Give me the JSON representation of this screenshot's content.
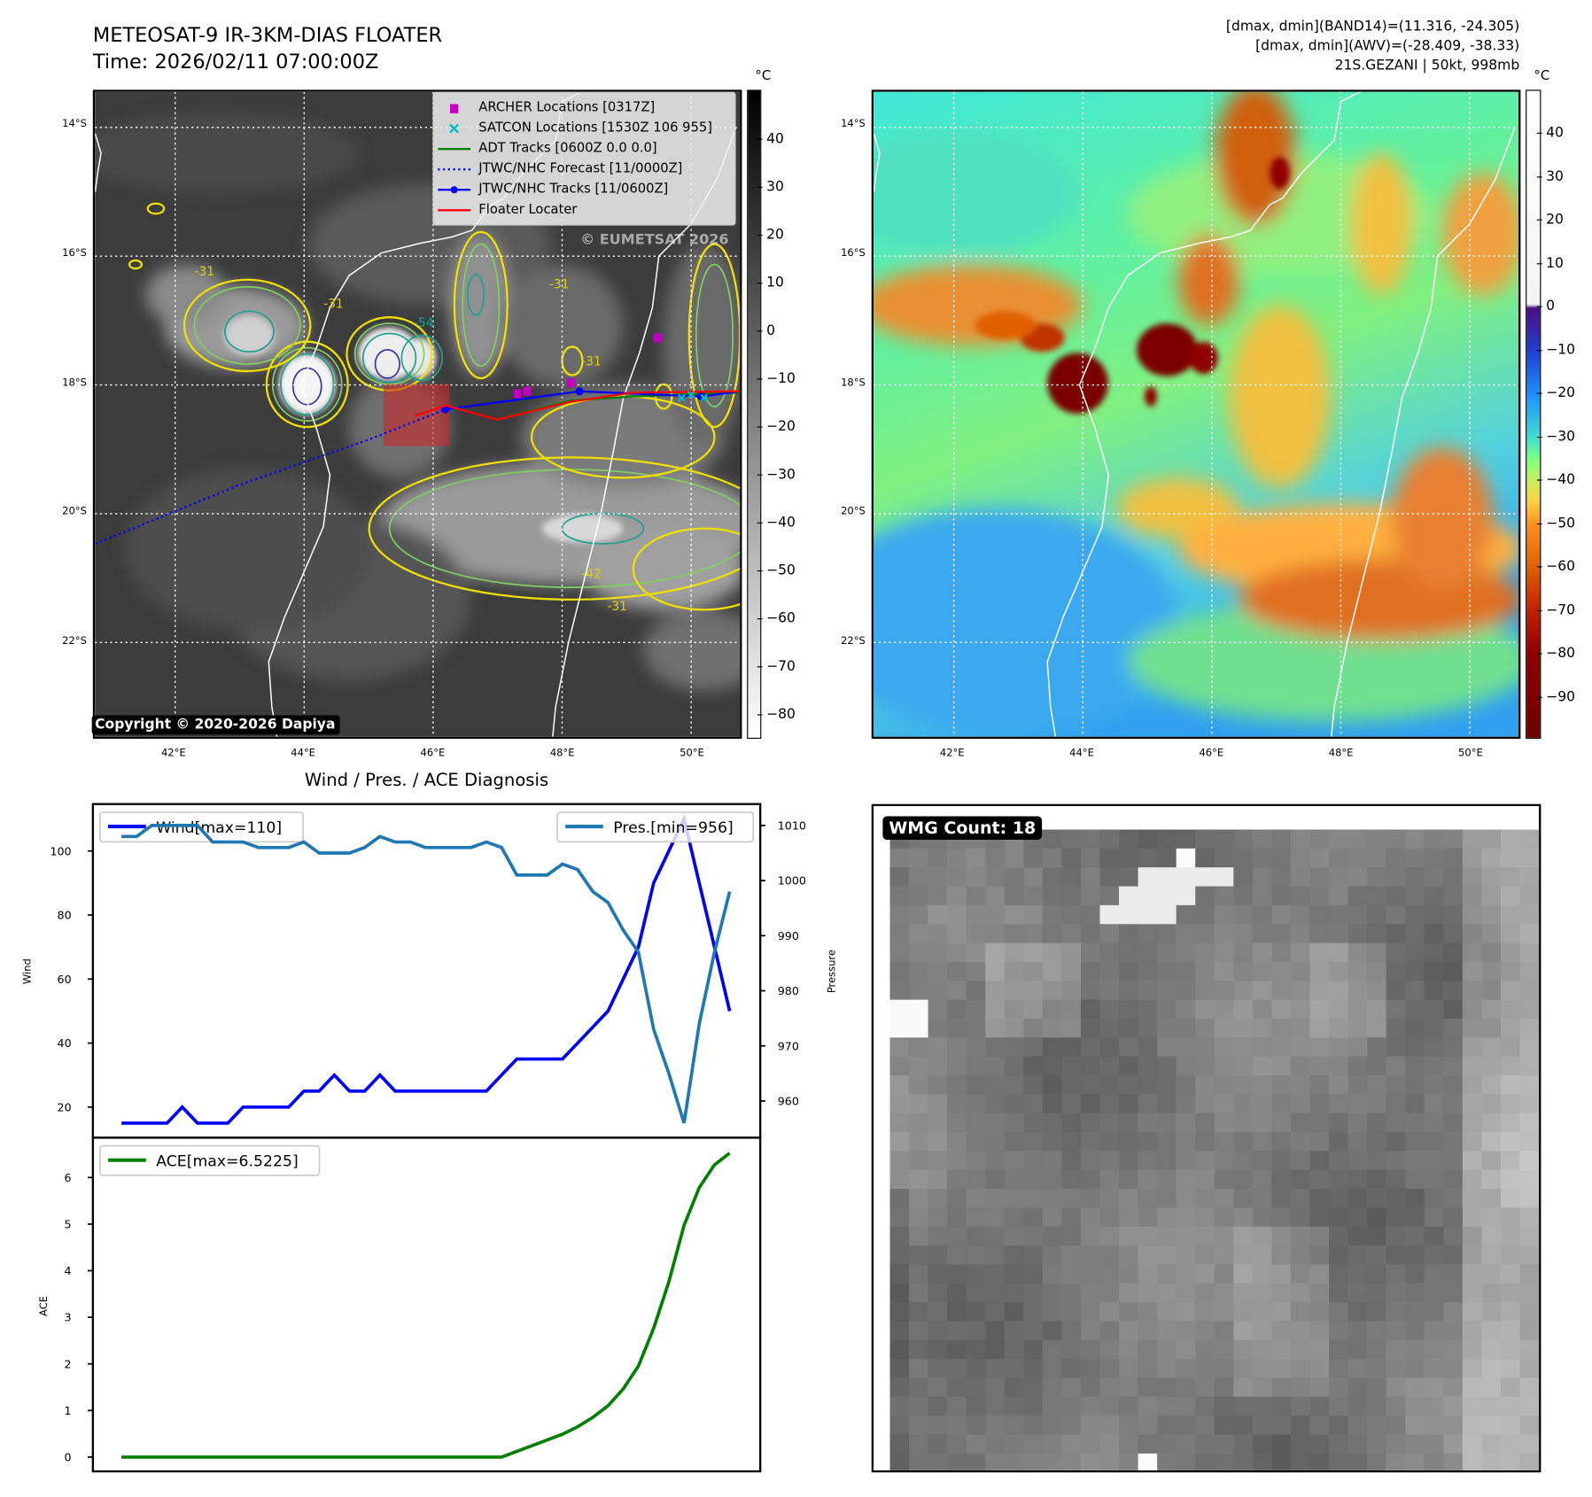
{
  "header": {
    "title_line1": "METEOSAT-9 IR-3KM-DIAS FLOATER",
    "title_line2": "Time: 2026/02/11 07:00:00Z",
    "stats_line1": "[dmax, dmin](BAND14)=(11.316, -24.305)",
    "stats_line2": "[dmax, dmin](AWV)=(-28.409, -38.33)",
    "stats_line3": "21S.GEZANI | 50kt, 998mb"
  },
  "map": {
    "lat_labels": [
      "14°S",
      "16°S",
      "18°S",
      "20°S",
      "22°S"
    ],
    "lon_labels": [
      "42°E",
      "44°E",
      "46°E",
      "48°E",
      "50°E"
    ],
    "watermark": "© EUMETSAT 2026",
    "copyright": "Copyright © 2020-2026 Dapiya",
    "legend": [
      {
        "label": "ARCHER Locations [0317Z]",
        "color": "#c000c0",
        "marker": "square"
      },
      {
        "label": "SATCON Locations [1530Z 106 955]",
        "color": "#00c0c0",
        "marker": "x"
      },
      {
        "label": "ADT Tracks [0600Z 0.0 0.0]",
        "color": "#008000",
        "marker": "line"
      },
      {
        "label": "JTWC/NHC Forecast [11/0000Z]",
        "color": "#0000ff",
        "marker": "dotted"
      },
      {
        "label": "JTWC/NHC Tracks [11/0600Z]",
        "color": "#0000ff",
        "marker": "line-dot"
      },
      {
        "label": "Floater Locater",
        "color": "#ff0000",
        "marker": "line"
      }
    ],
    "contour_labels": [
      {
        "text": "-31",
        "lon": 42.3,
        "lat": -16.3
      },
      {
        "text": "-31",
        "lon": 44.3,
        "lat": -16.8
      },
      {
        "text": "-31",
        "lon": 47.8,
        "lat": -16.5
      },
      {
        "text": "-54",
        "lon": 45.7,
        "lat": -17.1
      },
      {
        "text": "-31",
        "lon": 48.3,
        "lat": -17.7
      },
      {
        "text": "-42",
        "lon": 48.3,
        "lat": -21.0
      },
      {
        "text": "-31",
        "lon": 48.7,
        "lat": -21.5
      }
    ],
    "tracks": {
      "jtwc_forecast": [
        [
          40.76,
          -20.47
        ],
        [
          43.0,
          -19.55
        ],
        [
          45.0,
          -18.85
        ],
        [
          46.19,
          -18.38
        ]
      ],
      "jtwc_track": [
        [
          46.19,
          -18.38
        ],
        [
          48.27,
          -18.1
        ],
        [
          50.16,
          -18.18
        ],
        [
          50.76,
          -18.1
        ]
      ],
      "adt_track": [
        [
          46.99,
          -18.54
        ],
        [
          48.14,
          -18.24
        ],
        [
          49.09,
          -18.18
        ],
        [
          50.76,
          -18.12
        ]
      ],
      "floater": [
        [
          45.72,
          -18.48
        ],
        [
          46.2,
          -18.32
        ],
        [
          46.99,
          -18.54
        ],
        [
          48.09,
          -18.27
        ],
        [
          49.09,
          -18.12
        ],
        [
          50.76,
          -18.1
        ]
      ],
      "archer": [
        [
          49.48,
          -17.26
        ],
        [
          47.31,
          -18.13
        ],
        [
          47.46,
          -18.09
        ],
        [
          48.14,
          -17.96
        ]
      ],
      "satcon": [
        [
          49.85,
          -18.2
        ],
        [
          50.0,
          -18.15
        ],
        [
          50.2,
          -18.2
        ]
      ],
      "floater_box": {
        "lon": [
          45.23,
          46.25
        ],
        "lat": [
          -18.95,
          -17.99
        ]
      }
    },
    "colorbar_ir": {
      "unit": "°C",
      "ticks": [
        "40",
        "30",
        "20",
        "10",
        "0",
        "−10",
        "−20",
        "−30",
        "−40",
        "−50",
        "−60",
        "−70",
        "−80"
      ],
      "range": [
        50.4,
        -84.7
      ]
    },
    "colorbar_awv": {
      "unit": "°C",
      "ticks": [
        "40",
        "30",
        "20",
        "10",
        "0",
        "−10",
        "−20",
        "−30",
        "−40",
        "−50",
        "−60",
        "−70",
        "−80",
        "−90"
      ],
      "range": [
        50.1,
        -99.4
      ]
    }
  },
  "wmg": {
    "label": "WMG Count: 18"
  },
  "chart_data": [
    {
      "type": "line",
      "title": "Wind / Pres. / ACE Diagnosis",
      "ylabel": "Wind",
      "ylabel_right": "Pressure",
      "ylim": [
        10.4,
        114.6
      ],
      "ylim_right": [
        953.3,
        1013.9
      ],
      "yticks": [
        "20",
        "40",
        "60",
        "80",
        "100"
      ],
      "yticks_right": [
        "960",
        "970",
        "980",
        "990",
        "1000",
        "1010"
      ],
      "x": [
        0,
        1,
        2,
        3,
        4,
        5,
        6,
        7,
        8,
        9,
        10,
        11,
        12,
        13,
        14,
        15,
        16,
        17,
        18,
        19,
        20,
        21,
        22,
        23,
        24,
        25,
        26,
        27,
        28,
        29,
        30,
        31,
        32,
        33,
        34,
        35,
        36,
        37,
        38,
        39,
        40
      ],
      "series": [
        {
          "name": "Wind[max=110]",
          "axis": "left",
          "color": "#0000ff",
          "values": [
            15,
            15,
            15,
            15,
            20,
            15,
            15,
            15,
            20,
            20,
            20,
            20,
            25,
            25,
            30,
            25,
            25,
            30,
            25,
            25,
            25,
            25,
            25,
            25,
            25,
            30,
            35,
            35,
            35,
            35,
            40,
            45,
            50,
            60,
            70,
            90,
            100,
            110,
            90,
            70,
            50
          ]
        },
        {
          "name": "Pres.[min=956]",
          "axis": "right",
          "color": "#1f77b4",
          "values": [
            1008,
            1008,
            1010,
            1010,
            1010,
            1010,
            1007,
            1007,
            1007,
            1006,
            1006,
            1006,
            1007,
            1005,
            1005,
            1005,
            1006,
            1008,
            1007,
            1007,
            1006,
            1006,
            1006,
            1006,
            1007,
            1006,
            1001,
            1001,
            1001,
            1003,
            1002,
            998,
            996,
            991,
            987,
            973,
            965,
            956,
            974,
            987,
            998
          ]
        }
      ],
      "legend": [
        "upper-left",
        "upper-right"
      ]
    },
    {
      "type": "line",
      "ylabel": "ACE",
      "ylim": [
        -0.31,
        6.86
      ],
      "yticks": [
        "0",
        "1",
        "2",
        "3",
        "4",
        "5",
        "6"
      ],
      "x": [
        0,
        1,
        2,
        3,
        4,
        5,
        6,
        7,
        8,
        9,
        10,
        11,
        12,
        13,
        14,
        15,
        16,
        17,
        18,
        19,
        20,
        21,
        22,
        23,
        24,
        25,
        26,
        27,
        28,
        29,
        30,
        31,
        32,
        33,
        34,
        35,
        36,
        37,
        38,
        39,
        40
      ],
      "series": [
        {
          "name": "ACE[max=6.5225]",
          "color": "#008000",
          "values": [
            0,
            0,
            0,
            0,
            0,
            0,
            0,
            0,
            0,
            0,
            0,
            0,
            0,
            0,
            0,
            0,
            0,
            0,
            0,
            0,
            0,
            0,
            0,
            0,
            0,
            0,
            0.1225,
            0.245,
            0.3675,
            0.49,
            0.65,
            0.8525,
            1.1025,
            1.4625,
            1.9525,
            2.7625,
            3.7625,
            4.9725,
            5.7825,
            6.2725,
            6.5225
          ]
        }
      ],
      "legend": [
        "upper-left"
      ]
    }
  ]
}
